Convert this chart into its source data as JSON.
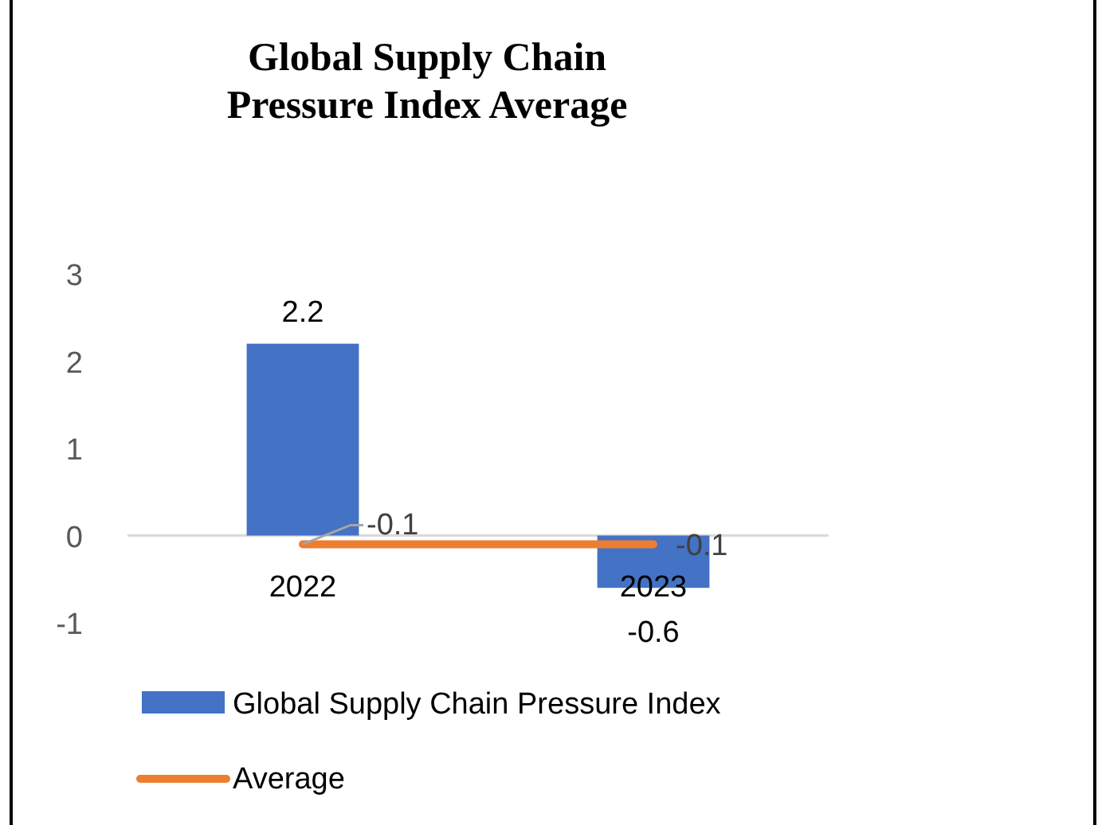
{
  "chart_data": {
    "type": "bar",
    "title": "Global Supply Chain Pressure Index Average",
    "categories": [
      "2022",
      "2023"
    ],
    "series": [
      {
        "name": "Global Supply Chain Pressure Index",
        "color": "#4472c4",
        "values": [
          2.2,
          -0.6
        ]
      },
      {
        "name": "Average",
        "type": "line",
        "color": "#ed7d31",
        "values": [
          -0.1,
          -0.1
        ],
        "marker": "none"
      }
    ],
    "ylim": [
      -1,
      3
    ],
    "yticks": [
      -1,
      0,
      1,
      2,
      3
    ],
    "grid": false,
    "data_labels": true,
    "legend": "bottom"
  }
}
